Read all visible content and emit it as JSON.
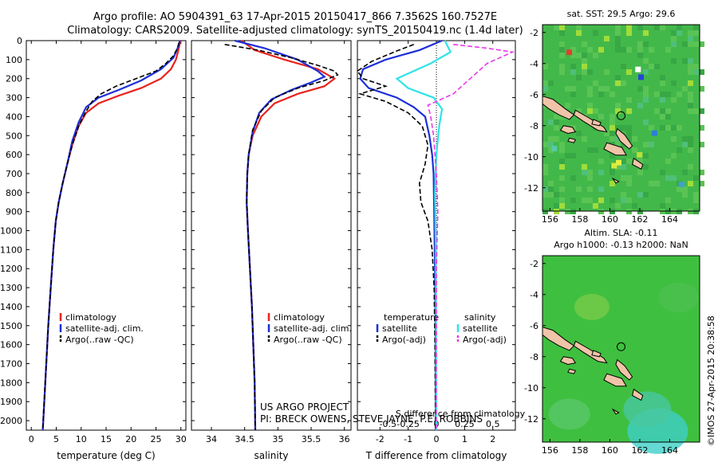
{
  "header": {
    "line1": "Argo profile: AO 5904391_63 17-Apr-2015 20150417_866 7.3562S 160.7527E",
    "line2": "Climatology: CARS2009. Satellite-adjusted climatology: synTS_20150419.nc (1.4d later)"
  },
  "colors": {
    "climatology": "#e8231f",
    "satellite": "#1d2fd8",
    "argo": "#000000",
    "sal_satellite": "#2fe3e8",
    "sal_argo": "#e83ae8",
    "land": "#f0c4a8",
    "sea_sst": "#43b84a",
    "sea_sla": "#3fbf3f"
  },
  "credits": {
    "project": "US ARGO PROJECT",
    "pi": "PI: BRECK OWENS, STEVE JAYNE, P.E. ROBBINS",
    "stamp": "©IMOS 27-Apr-2015 20:38:58"
  },
  "chart_data": [
    {
      "type": "line",
      "id": "temperature",
      "xlabel": "temperature (deg C)",
      "ylabel": "",
      "xlim": [
        -1,
        31
      ],
      "ylim": [
        2050,
        0
      ],
      "xticks": [
        "0",
        "5",
        "10",
        "15",
        "20",
        "25",
        "30"
      ],
      "yticks": [
        "0",
        "100",
        "200",
        "300",
        "400",
        "500",
        "600",
        "700",
        "800",
        "900",
        "1000",
        "1100",
        "1200",
        "1300",
        "1400",
        "1500",
        "1600",
        "1700",
        "1800",
        "1900",
        "2000"
      ],
      "legend": [
        "climatology",
        "satellite-adj. clim.",
        "Argo(..raw -QC)"
      ],
      "series": [
        {
          "name": "climatology",
          "color": "climatology",
          "pts": [
            [
              29.9,
              0
            ],
            [
              29.5,
              50
            ],
            [
              29.0,
              100
            ],
            [
              28.0,
              150
            ],
            [
              26.0,
              200
            ],
            [
              22.0,
              250
            ],
            [
              17.5,
              290
            ],
            [
              13.5,
              330
            ],
            [
              11.0,
              380
            ],
            [
              9.5,
              450
            ],
            [
              8.2,
              550
            ],
            [
              7.2,
              650
            ],
            [
              6.3,
              750
            ],
            [
              5.5,
              850
            ],
            [
              4.9,
              950
            ],
            [
              4.4,
              1100
            ],
            [
              3.9,
              1300
            ],
            [
              3.4,
              1500
            ],
            [
              3.0,
              1700
            ],
            [
              2.6,
              1900
            ],
            [
              2.3,
              2050
            ]
          ]
        },
        {
          "name": "satellite-adj. clim.",
          "color": "satellite",
          "pts": [
            [
              29.8,
              0
            ],
            [
              29.5,
              30
            ],
            [
              28.5,
              90
            ],
            [
              26.0,
              150
            ],
            [
              22.0,
              210
            ],
            [
              17.5,
              260
            ],
            [
              13.5,
              300
            ],
            [
              11.0,
              350
            ],
            [
              9.5,
              430
            ],
            [
              8.2,
              530
            ],
            [
              7.2,
              650
            ],
            [
              6.3,
              750
            ],
            [
              5.5,
              850
            ],
            [
              4.9,
              950
            ],
            [
              4.4,
              1100
            ],
            [
              3.9,
              1300
            ],
            [
              3.4,
              1500
            ],
            [
              3.0,
              1700
            ],
            [
              2.6,
              1900
            ],
            [
              2.3,
              2050
            ]
          ]
        },
        {
          "name": "Argo(..raw -QC)",
          "color": "argo",
          "dash": true,
          "pts": [
            [
              29.6,
              10
            ],
            [
              29.3,
              40
            ],
            [
              28.5,
              80
            ],
            [
              27.0,
              120
            ],
            [
              25.0,
              160
            ],
            [
              21.0,
              200
            ],
            [
              17.0,
              240
            ],
            [
              14.0,
              280
            ],
            [
              12.2,
              320
            ],
            [
              10.8,
              380
            ],
            [
              9.5,
              450
            ],
            [
              8.2,
              550
            ],
            [
              7.2,
              650
            ],
            [
              6.3,
              750
            ],
            [
              5.5,
              850
            ],
            [
              4.9,
              950
            ],
            [
              4.4,
              1100
            ],
            [
              3.9,
              1300
            ],
            [
              3.4,
              1500
            ],
            [
              3.0,
              1700
            ],
            [
              2.6,
              1900
            ],
            [
              2.3,
              2050
            ]
          ]
        }
      ]
    },
    {
      "type": "line",
      "id": "salinity",
      "xlabel": "salinity",
      "ylabel": "",
      "xlim": [
        33.7,
        36.1
      ],
      "ylim": [
        2050,
        0
      ],
      "xticks": [
        "34",
        "34.5",
        "35",
        "35.5",
        "36"
      ],
      "legend": [
        "climatology",
        "satellite-adj. clim.",
        "Argo(..raw -QC)"
      ],
      "series": [
        {
          "name": "climatology",
          "color": "climatology",
          "pts": [
            [
              34.45,
              0
            ],
            [
              34.65,
              50
            ],
            [
              35.1,
              100
            ],
            [
              35.6,
              150
            ],
            [
              35.85,
              200
            ],
            [
              35.7,
              240
            ],
            [
              35.3,
              280
            ],
            [
              34.95,
              330
            ],
            [
              34.75,
              400
            ],
            [
              34.62,
              500
            ],
            [
              34.56,
              600
            ],
            [
              34.54,
              700
            ],
            [
              34.53,
              850
            ],
            [
              34.55,
              1000
            ],
            [
              34.58,
              1200
            ],
            [
              34.61,
              1400
            ],
            [
              34.63,
              1600
            ],
            [
              34.65,
              1800
            ],
            [
              34.66,
              2050
            ]
          ]
        },
        {
          "name": "satellite-adj. clim.",
          "color": "satellite",
          "pts": [
            [
              34.35,
              0
            ],
            [
              34.8,
              40
            ],
            [
              35.3,
              100
            ],
            [
              35.6,
              160
            ],
            [
              35.7,
              190
            ],
            [
              35.5,
              220
            ],
            [
              35.2,
              260
            ],
            [
              34.9,
              310
            ],
            [
              34.72,
              380
            ],
            [
              34.62,
              480
            ],
            [
              34.56,
              600
            ],
            [
              34.54,
              700
            ],
            [
              34.53,
              850
            ],
            [
              34.55,
              1000
            ],
            [
              34.58,
              1200
            ],
            [
              34.61,
              1400
            ],
            [
              34.63,
              1600
            ],
            [
              34.65,
              1800
            ],
            [
              34.66,
              2050
            ]
          ]
        },
        {
          "name": "Argo(..raw -QC)",
          "color": "argo",
          "dash": true,
          "pts": [
            [
              34.2,
              20
            ],
            [
              34.7,
              50
            ],
            [
              35.2,
              90
            ],
            [
              35.6,
              130
            ],
            [
              35.85,
              160
            ],
            [
              35.9,
              180
            ],
            [
              35.7,
              210
            ],
            [
              35.3,
              250
            ],
            [
              34.95,
              300
            ],
            [
              34.75,
              370
            ],
            [
              34.62,
              470
            ],
            [
              34.56,
              600
            ],
            [
              34.54,
              700
            ],
            [
              34.53,
              850
            ],
            [
              34.55,
              1000
            ],
            [
              34.58,
              1200
            ],
            [
              34.61,
              1400
            ],
            [
              34.63,
              1600
            ],
            [
              34.65,
              1800
            ],
            [
              34.66,
              2050
            ]
          ]
        }
      ]
    },
    {
      "type": "line",
      "id": "difference",
      "xlabel": "T difference from climatology",
      "ylabel": "",
      "top_xlabel": "S difference from climatology",
      "xlim": [
        -2.8,
        2.8
      ],
      "ylim": [
        2050,
        0
      ],
      "xticks": [
        "-2",
        "-1",
        "0",
        "1",
        "2"
      ],
      "s_xticks": [
        "-0.5",
        "-0.25",
        "0",
        "0.25",
        "0.5"
      ],
      "legend_headers": [
        "temperature",
        "salinity"
      ],
      "legend": [
        "satellite",
        "Argo(-adj)",
        "satellite",
        "Argo(-adj)"
      ],
      "series": [
        {
          "name": "satellite",
          "color": "satellite",
          "pts": [
            [
              0.2,
              0
            ],
            [
              -0.6,
              50
            ],
            [
              -1.8,
              100
            ],
            [
              -2.6,
              150
            ],
            [
              -2.7,
              200
            ],
            [
              -2.4,
              250
            ],
            [
              -1.4,
              300
            ],
            [
              -0.8,
              350
            ],
            [
              -0.4,
              400
            ],
            [
              -0.25,
              500
            ],
            [
              -0.15,
              600
            ],
            [
              -0.1,
              700
            ],
            [
              -0.08,
              900
            ],
            [
              -0.05,
              1200
            ],
            [
              -0.03,
              1500
            ],
            [
              -0.02,
              2050
            ]
          ]
        },
        {
          "name": "Argo(-adj)",
          "color": "argo",
          "dash": true,
          "pts": [
            [
              -0.8,
              20
            ],
            [
              -1.5,
              60
            ],
            [
              -2.3,
              110
            ],
            [
              -2.8,
              160
            ],
            [
              -2.6,
              200
            ],
            [
              -1.8,
              240
            ],
            [
              -2.7,
              280
            ],
            [
              -1.8,
              320
            ],
            [
              -1.0,
              380
            ],
            [
              -0.5,
              450
            ],
            [
              -0.3,
              550
            ],
            [
              -0.4,
              650
            ],
            [
              -0.6,
              750
            ],
            [
              -0.55,
              850
            ],
            [
              -0.3,
              950
            ],
            [
              -0.15,
              1100
            ],
            [
              -0.08,
              1300
            ],
            [
              -0.05,
              1600
            ],
            [
              -0.03,
              2050
            ]
          ]
        },
        {
          "name": "satellite",
          "color": "sal_satellite",
          "pts": [
            [
              0.3,
              0
            ],
            [
              0.5,
              60
            ],
            [
              -0.2,
              120
            ],
            [
              -1.4,
              200
            ],
            [
              -1.0,
              250
            ],
            [
              -0.1,
              300
            ],
            [
              0.2,
              360
            ],
            [
              0.1,
              450
            ],
            [
              0.0,
              600
            ],
            [
              -0.05,
              800
            ],
            [
              -0.02,
              1100
            ],
            [
              0.0,
              2050
            ]
          ]
        },
        {
          "name": "Argo(-adj)",
          "color": "sal_argo",
          "dash": true,
          "pts": [
            [
              0.6,
              20
            ],
            [
              1.8,
              40
            ],
            [
              2.7,
              60
            ],
            [
              1.8,
              120
            ],
            [
              1.2,
              200
            ],
            [
              0.6,
              280
            ],
            [
              -0.3,
              340
            ],
            [
              -0.2,
              400
            ],
            [
              -0.1,
              500
            ],
            [
              0.0,
              700
            ],
            [
              0.05,
              900
            ],
            [
              0.0,
              1200
            ],
            [
              0.0,
              2050
            ]
          ]
        }
      ]
    },
    {
      "type": "heatmap",
      "id": "sst-map",
      "title": "sat. SST: 29.5 Argo: 29.6",
      "xlim": [
        155.5,
        166
      ],
      "ylim": [
        -13.5,
        -1.5
      ],
      "xticks": [
        "156",
        "158",
        "160",
        "162",
        "164"
      ],
      "yticks": [
        "-2",
        "-4",
        "-6",
        "-8",
        "-10",
        "-12"
      ],
      "float_position": [
        160.75,
        -7.36
      ]
    },
    {
      "type": "heatmap",
      "id": "sla-map",
      "title_line1": "Altim. SLA: -0.11",
      "title_line2": "Argo h1000: -0.13 h2000: NaN",
      "xlim": [
        155.5,
        166
      ],
      "ylim": [
        -13.5,
        -1.5
      ],
      "xticks": [
        "156",
        "158",
        "160",
        "162",
        "164"
      ],
      "yticks": [
        "-2",
        "-4",
        "-6",
        "-8",
        "-10",
        "-12"
      ],
      "float_position": [
        160.75,
        -7.36
      ]
    }
  ]
}
